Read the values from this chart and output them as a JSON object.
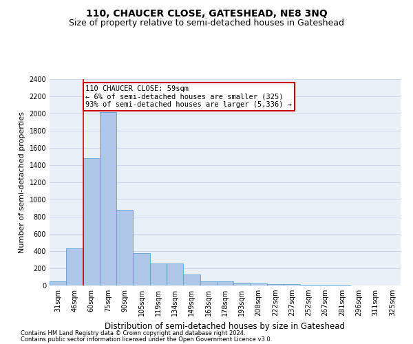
{
  "title": "110, CHAUCER CLOSE, GATESHEAD, NE8 3NQ",
  "subtitle": "Size of property relative to semi-detached houses in Gateshead",
  "xlabel": "Distribution of semi-detached houses by size in Gateshead",
  "ylabel": "Number of semi-detached properties",
  "categories": [
    "31sqm",
    "46sqm",
    "60sqm",
    "75sqm",
    "90sqm",
    "105sqm",
    "119sqm",
    "134sqm",
    "149sqm",
    "163sqm",
    "178sqm",
    "193sqm",
    "208sqm",
    "222sqm",
    "237sqm",
    "252sqm",
    "267sqm",
    "281sqm",
    "296sqm",
    "311sqm",
    "325sqm"
  ],
  "values": [
    50,
    435,
    1480,
    2020,
    880,
    375,
    255,
    255,
    130,
    45,
    45,
    30,
    25,
    15,
    15,
    8,
    5,
    5,
    3,
    2,
    2
  ],
  "bar_color": "#aec6e8",
  "bar_edge_color": "#5a9fd4",
  "property_line_index": 2,
  "annotation_text": "110 CHAUCER CLOSE: 59sqm\n← 6% of semi-detached houses are smaller (325)\n93% of semi-detached houses are larger (5,336) →",
  "annotation_box_color": "#ffffff",
  "annotation_box_edge_color": "#cc0000",
  "property_line_color": "#cc0000",
  "ylim": [
    0,
    2400
  ],
  "yticks": [
    0,
    200,
    400,
    600,
    800,
    1000,
    1200,
    1400,
    1600,
    1800,
    2000,
    2200,
    2400
  ],
  "footer_line1": "Contains HM Land Registry data © Crown copyright and database right 2024.",
  "footer_line2": "Contains public sector information licensed under the Open Government Licence v3.0.",
  "bg_color": "#ffffff",
  "ax_bg_color": "#eaf0f8",
  "grid_color": "#c8d4e8",
  "title_fontsize": 10,
  "subtitle_fontsize": 9,
  "xlabel_fontsize": 8.5,
  "ylabel_fontsize": 8,
  "tick_fontsize": 7,
  "footer_fontsize": 6,
  "annot_fontsize": 7.5
}
